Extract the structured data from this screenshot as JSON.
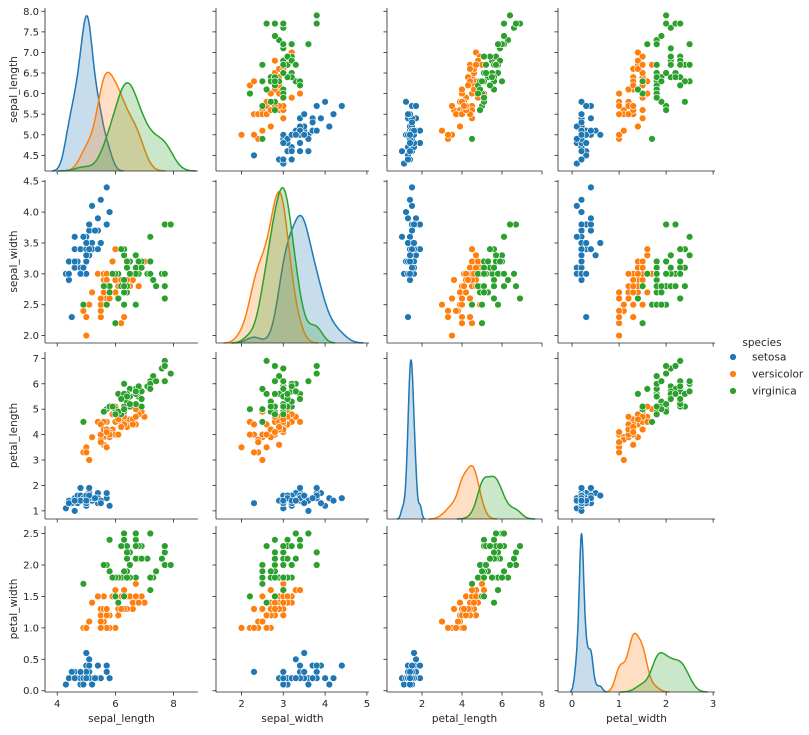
{
  "chart_data": {
    "type": "scatter",
    "title": "",
    "variables": [
      "sepal_length",
      "sepal_width",
      "petal_length",
      "petal_width"
    ],
    "diagonal": "kde",
    "axes": {
      "sepal_length": {
        "x_range": [
          3.58,
          8.84
        ],
        "y_range": [
          4.12,
          8.08
        ],
        "ticks_x": [
          4,
          6,
          8
        ],
        "tick_labels_x": [
          "4",
          "6",
          "8"
        ],
        "ticks_y": [
          4.5,
          5.0,
          5.5,
          6.0,
          6.5,
          7.0,
          7.5,
          8.0
        ],
        "tick_labels_y": [
          "4.5",
          "5.0",
          "5.5",
          "6.0",
          "6.5",
          "7.0",
          "7.5",
          "8.0"
        ]
      },
      "sepal_width": {
        "x_range": [
          1.39,
          5.05
        ],
        "y_range": [
          1.88,
          4.52
        ],
        "ticks_x": [
          2,
          3,
          4,
          5
        ],
        "tick_labels_x": [
          "2",
          "3",
          "4",
          "5"
        ],
        "ticks_y": [
          2.0,
          2.5,
          3.0,
          3.5,
          4.0,
          4.5
        ],
        "tick_labels_y": [
          "2.0",
          "2.5",
          "3.0",
          "3.5",
          "4.0",
          "4.5"
        ]
      },
      "petal_length": {
        "x_range": [
          0.25,
          8.0
        ],
        "y_range": [
          0.68,
          7.25
        ],
        "ticks_x": [
          2,
          4,
          6,
          8
        ],
        "tick_labels_x": [
          "2",
          "4",
          "6",
          "8"
        ],
        "ticks_y": [
          1,
          2,
          3,
          4,
          5,
          6,
          7
        ],
        "tick_labels_y": [
          "1",
          "2",
          "3",
          "4",
          "5",
          "6",
          "7"
        ]
      },
      "petal_width": {
        "x_range": [
          -0.3,
          3.04
        ],
        "y_range": [
          -0.02,
          2.62
        ],
        "ticks_x": [
          0,
          1,
          2,
          3
        ],
        "tick_labels_x": [
          "0",
          "1",
          "2",
          "3"
        ],
        "ticks_y": [
          0.0,
          0.5,
          1.0,
          1.5,
          2.0,
          2.5
        ],
        "tick_labels_y": [
          "0.0",
          "0.5",
          "1.0",
          "1.5",
          "2.0",
          "2.5"
        ]
      }
    },
    "legend": {
      "title": "species",
      "placement": "right"
    },
    "series": [
      {
        "name": "setosa",
        "color": "#1f77b4",
        "points": [
          [
            5.1,
            3.5,
            1.4,
            0.2
          ],
          [
            4.9,
            3.0,
            1.4,
            0.2
          ],
          [
            4.7,
            3.2,
            1.3,
            0.2
          ],
          [
            4.6,
            3.1,
            1.5,
            0.2
          ],
          [
            5.0,
            3.6,
            1.4,
            0.2
          ],
          [
            5.4,
            3.9,
            1.7,
            0.4
          ],
          [
            4.6,
            3.4,
            1.4,
            0.3
          ],
          [
            5.0,
            3.4,
            1.5,
            0.2
          ],
          [
            4.4,
            2.9,
            1.4,
            0.2
          ],
          [
            4.9,
            3.1,
            1.5,
            0.1
          ],
          [
            5.4,
            3.7,
            1.5,
            0.2
          ],
          [
            4.8,
            3.4,
            1.6,
            0.2
          ],
          [
            4.8,
            3.0,
            1.4,
            0.1
          ],
          [
            4.3,
            3.0,
            1.1,
            0.1
          ],
          [
            5.8,
            4.0,
            1.2,
            0.2
          ],
          [
            5.7,
            4.4,
            1.5,
            0.4
          ],
          [
            5.4,
            3.9,
            1.3,
            0.4
          ],
          [
            5.1,
            3.5,
            1.4,
            0.3
          ],
          [
            5.7,
            3.8,
            1.7,
            0.3
          ],
          [
            5.1,
            3.8,
            1.5,
            0.3
          ],
          [
            5.4,
            3.4,
            1.7,
            0.2
          ],
          [
            5.1,
            3.7,
            1.5,
            0.4
          ],
          [
            4.6,
            3.6,
            1.0,
            0.2
          ],
          [
            5.1,
            3.3,
            1.7,
            0.5
          ],
          [
            4.8,
            3.4,
            1.9,
            0.2
          ],
          [
            5.0,
            3.0,
            1.6,
            0.2
          ],
          [
            5.0,
            3.4,
            1.6,
            0.4
          ],
          [
            5.2,
            3.5,
            1.5,
            0.2
          ],
          [
            5.2,
            3.4,
            1.4,
            0.2
          ],
          [
            4.7,
            3.2,
            1.6,
            0.2
          ],
          [
            4.8,
            3.1,
            1.6,
            0.2
          ],
          [
            5.4,
            3.4,
            1.5,
            0.4
          ],
          [
            5.2,
            4.1,
            1.5,
            0.1
          ],
          [
            5.5,
            4.2,
            1.4,
            0.2
          ],
          [
            4.9,
            3.1,
            1.5,
            0.2
          ],
          [
            5.0,
            3.2,
            1.2,
            0.2
          ],
          [
            5.5,
            3.5,
            1.3,
            0.2
          ],
          [
            4.9,
            3.6,
            1.4,
            0.1
          ],
          [
            4.4,
            3.0,
            1.3,
            0.2
          ],
          [
            5.1,
            3.4,
            1.5,
            0.2
          ],
          [
            5.0,
            3.5,
            1.3,
            0.3
          ],
          [
            4.5,
            2.3,
            1.3,
            0.3
          ],
          [
            4.4,
            3.2,
            1.3,
            0.2
          ],
          [
            5.0,
            3.5,
            1.6,
            0.6
          ],
          [
            5.1,
            3.8,
            1.9,
            0.4
          ],
          [
            4.8,
            3.0,
            1.4,
            0.3
          ],
          [
            5.1,
            3.8,
            1.6,
            0.2
          ],
          [
            4.6,
            3.2,
            1.4,
            0.2
          ],
          [
            5.3,
            3.7,
            1.5,
            0.2
          ],
          [
            5.0,
            3.3,
            1.4,
            0.2
          ]
        ]
      },
      {
        "name": "versicolor",
        "color": "#ff7f0e",
        "points": [
          [
            7.0,
            3.2,
            4.7,
            1.4
          ],
          [
            6.4,
            3.2,
            4.5,
            1.5
          ],
          [
            6.9,
            3.1,
            4.9,
            1.5
          ],
          [
            5.5,
            2.3,
            4.0,
            1.3
          ],
          [
            6.5,
            2.8,
            4.6,
            1.5
          ],
          [
            5.7,
            2.8,
            4.5,
            1.3
          ],
          [
            6.3,
            3.3,
            4.7,
            1.6
          ],
          [
            4.9,
            2.4,
            3.3,
            1.0
          ],
          [
            6.6,
            2.9,
            4.6,
            1.3
          ],
          [
            5.2,
            2.7,
            3.9,
            1.4
          ],
          [
            5.0,
            2.0,
            3.5,
            1.0
          ],
          [
            5.9,
            3.0,
            4.2,
            1.5
          ],
          [
            6.0,
            2.2,
            4.0,
            1.0
          ],
          [
            6.1,
            2.9,
            4.7,
            1.4
          ],
          [
            5.6,
            2.9,
            3.6,
            1.3
          ],
          [
            6.7,
            3.1,
            4.4,
            1.4
          ],
          [
            5.6,
            3.0,
            4.5,
            1.5
          ],
          [
            5.8,
            2.7,
            4.1,
            1.0
          ],
          [
            6.2,
            2.2,
            4.5,
            1.5
          ],
          [
            5.6,
            2.5,
            3.9,
            1.1
          ],
          [
            5.9,
            3.2,
            4.8,
            1.8
          ],
          [
            6.1,
            2.8,
            4.0,
            1.3
          ],
          [
            6.3,
            2.5,
            4.9,
            1.5
          ],
          [
            6.1,
            2.8,
            4.7,
            1.2
          ],
          [
            6.4,
            2.9,
            4.3,
            1.3
          ],
          [
            6.6,
            3.0,
            4.4,
            1.4
          ],
          [
            6.8,
            2.8,
            4.8,
            1.4
          ],
          [
            6.7,
            3.0,
            5.0,
            1.7
          ],
          [
            6.0,
            2.9,
            4.5,
            1.5
          ],
          [
            5.7,
            2.6,
            3.5,
            1.0
          ],
          [
            5.5,
            2.4,
            3.8,
            1.1
          ],
          [
            5.5,
            2.4,
            3.7,
            1.0
          ],
          [
            5.8,
            2.7,
            3.9,
            1.2
          ],
          [
            6.0,
            2.7,
            5.1,
            1.6
          ],
          [
            5.4,
            3.0,
            4.5,
            1.5
          ],
          [
            6.0,
            3.4,
            4.5,
            1.6
          ],
          [
            6.7,
            3.1,
            4.7,
            1.5
          ],
          [
            6.3,
            2.3,
            4.4,
            1.3
          ],
          [
            5.6,
            3.0,
            4.1,
            1.3
          ],
          [
            5.5,
            2.5,
            4.0,
            1.3
          ],
          [
            5.5,
            2.6,
            4.4,
            1.2
          ],
          [
            6.1,
            3.0,
            4.6,
            1.4
          ],
          [
            5.8,
            2.6,
            4.0,
            1.2
          ],
          [
            5.0,
            2.3,
            3.3,
            1.0
          ],
          [
            5.6,
            2.7,
            4.2,
            1.3
          ],
          [
            5.7,
            3.0,
            4.2,
            1.2
          ],
          [
            5.7,
            2.9,
            4.2,
            1.3
          ],
          [
            6.2,
            2.9,
            4.3,
            1.3
          ],
          [
            5.1,
            2.5,
            3.0,
            1.1
          ],
          [
            5.7,
            2.8,
            4.1,
            1.3
          ]
        ]
      },
      {
        "name": "virginica",
        "color": "#2ca02c",
        "points": [
          [
            6.3,
            3.3,
            6.0,
            2.5
          ],
          [
            5.8,
            2.7,
            5.1,
            1.9
          ],
          [
            7.1,
            3.0,
            5.9,
            2.1
          ],
          [
            6.3,
            2.9,
            5.6,
            1.8
          ],
          [
            6.5,
            3.0,
            5.8,
            2.2
          ],
          [
            7.6,
            3.0,
            6.6,
            2.1
          ],
          [
            4.9,
            2.5,
            4.5,
            1.7
          ],
          [
            7.3,
            2.9,
            6.3,
            1.8
          ],
          [
            6.7,
            2.5,
            5.8,
            1.8
          ],
          [
            7.2,
            3.6,
            6.1,
            2.5
          ],
          [
            6.5,
            3.2,
            5.1,
            2.0
          ],
          [
            6.4,
            2.7,
            5.3,
            1.9
          ],
          [
            6.8,
            3.0,
            5.5,
            2.1
          ],
          [
            5.7,
            2.5,
            5.0,
            2.0
          ],
          [
            5.8,
            2.8,
            5.1,
            2.4
          ],
          [
            6.4,
            3.2,
            5.3,
            2.3
          ],
          [
            6.5,
            3.0,
            5.5,
            1.8
          ],
          [
            7.7,
            3.8,
            6.7,
            2.2
          ],
          [
            7.7,
            2.6,
            6.9,
            2.3
          ],
          [
            6.0,
            2.2,
            5.0,
            1.5
          ],
          [
            6.9,
            3.2,
            5.7,
            2.3
          ],
          [
            5.6,
            2.8,
            4.9,
            2.0
          ],
          [
            7.7,
            2.8,
            6.7,
            2.0
          ],
          [
            6.3,
            2.7,
            4.9,
            1.8
          ],
          [
            6.7,
            3.3,
            5.7,
            2.1
          ],
          [
            7.2,
            3.2,
            6.0,
            1.8
          ],
          [
            6.2,
            2.8,
            4.8,
            1.8
          ],
          [
            6.1,
            3.0,
            4.9,
            1.8
          ],
          [
            6.4,
            2.8,
            5.6,
            2.1
          ],
          [
            7.2,
            3.0,
            5.8,
            1.6
          ],
          [
            7.4,
            2.8,
            6.1,
            1.9
          ],
          [
            7.9,
            3.8,
            6.4,
            2.0
          ],
          [
            6.4,
            2.8,
            5.6,
            2.2
          ],
          [
            6.3,
            2.8,
            5.1,
            1.5
          ],
          [
            6.1,
            2.6,
            5.6,
            1.4
          ],
          [
            7.7,
            3.0,
            6.1,
            2.3
          ],
          [
            6.3,
            3.4,
            5.6,
            2.4
          ],
          [
            6.4,
            3.1,
            5.5,
            1.8
          ],
          [
            6.0,
            3.0,
            4.8,
            1.8
          ],
          [
            6.9,
            3.1,
            5.4,
            2.1
          ],
          [
            6.7,
            3.1,
            5.6,
            2.4
          ],
          [
            6.9,
            3.1,
            5.1,
            2.3
          ],
          [
            5.8,
            2.7,
            5.1,
            1.9
          ],
          [
            6.8,
            3.2,
            5.9,
            2.3
          ],
          [
            6.7,
            3.3,
            5.7,
            2.5
          ],
          [
            6.7,
            3.0,
            5.2,
            2.3
          ],
          [
            6.3,
            2.5,
            5.0,
            1.9
          ],
          [
            6.5,
            3.0,
            5.2,
            2.0
          ],
          [
            6.2,
            3.4,
            5.4,
            2.3
          ],
          [
            5.9,
            3.0,
            5.1,
            1.8
          ]
        ]
      }
    ]
  }
}
